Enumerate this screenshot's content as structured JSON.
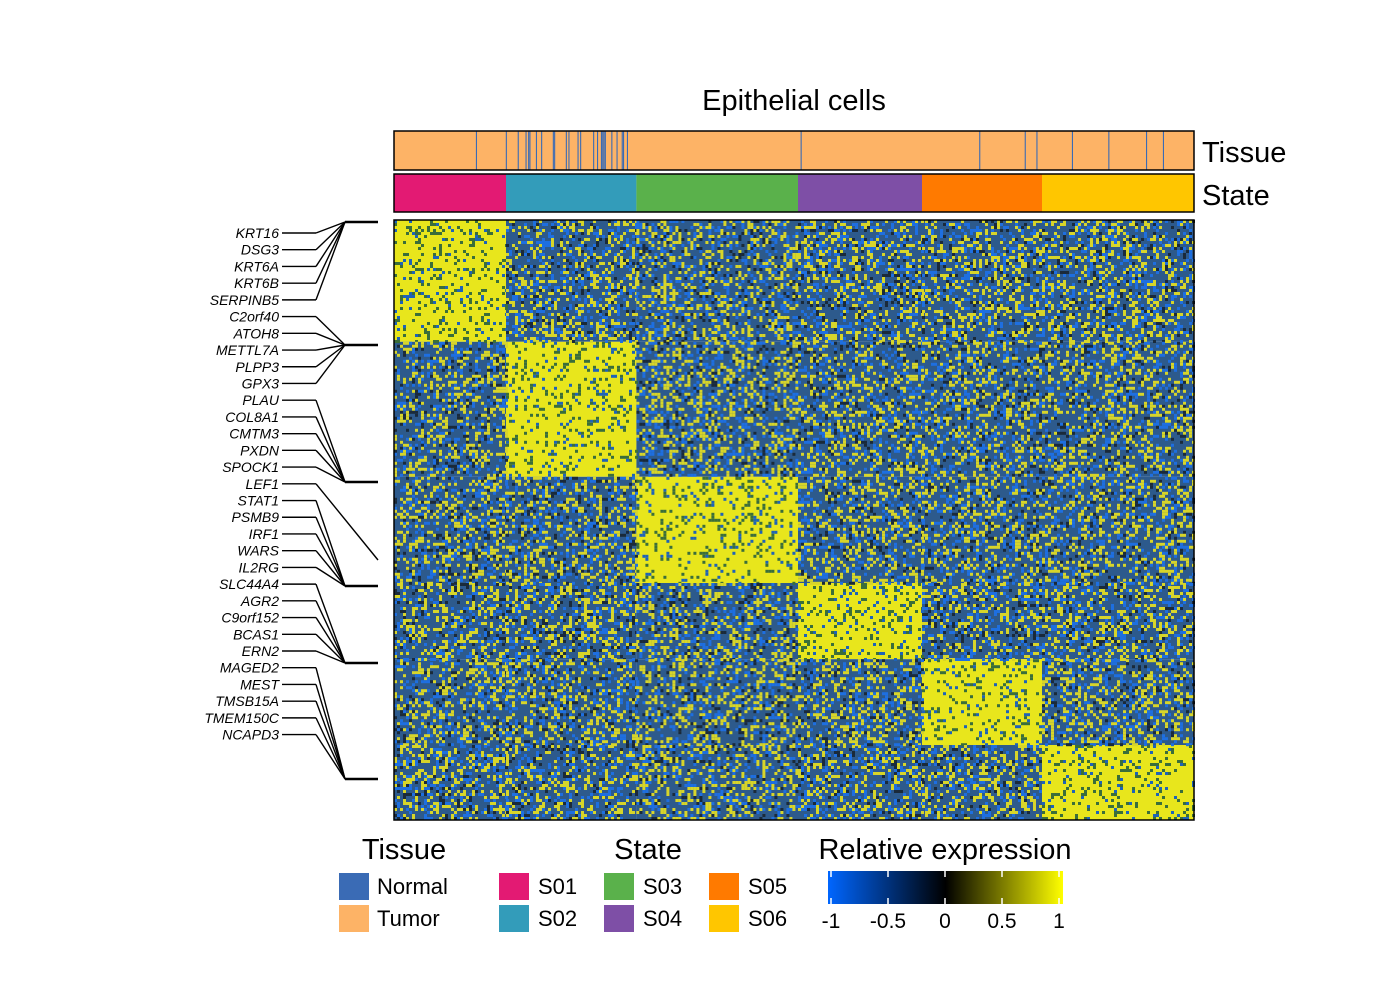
{
  "chart_data": {
    "type": "heatmap",
    "title": "Epithelial cells",
    "annotation_tracks": [
      "Tissue",
      "State"
    ],
    "states": [
      "S01",
      "S02",
      "S03",
      "S04",
      "S05",
      "S06"
    ],
    "state_fractions": [
      0.14,
      0.163,
      0.202,
      0.155,
      0.15,
      0.19
    ],
    "gene_block_fractions": [
      0.203,
      0.225,
      0.177,
      0.127,
      0.143,
      0.125
    ],
    "genes": [
      "KRT16",
      "DSG3",
      "KRT6A",
      "KRT6B",
      "SERPINB5",
      "C2orf40",
      "ATOH8",
      "METTL7A",
      "PLPP3",
      "GPX3",
      "PLAU",
      "COL8A1",
      "CMTM3",
      "PXDN",
      "SPOCK1",
      "LEF1",
      "STAT1",
      "PSMB9",
      "IRF1",
      "WARS",
      "IL2RG",
      "SLC44A4",
      "AGR2",
      "C9orf152",
      "BCAS1",
      "ERN2",
      "MAGED2",
      "MEST",
      "TMSB15A",
      "TMEM150C",
      "NCAPD3"
    ],
    "gene_groups": [
      5,
      5,
      6,
      5,
      5,
      5
    ],
    "legends": {
      "tissue": {
        "title": "Tissue",
        "items": [
          {
            "label": "Normal",
            "color": "#3A6BB5"
          },
          {
            "label": "Tumor",
            "color": "#FDB366"
          }
        ]
      },
      "state": {
        "title": "State",
        "items": [
          {
            "label": "S01",
            "color": "#E31A73"
          },
          {
            "label": "S02",
            "color": "#339CBA"
          },
          {
            "label": "S03",
            "color": "#5AB14B"
          },
          {
            "label": "S04",
            "color": "#7E4FA6"
          },
          {
            "label": "S05",
            "color": "#FF7A00"
          },
          {
            "label": "S06",
            "color": "#FFC600"
          }
        ]
      },
      "expression": {
        "title": "Relative expression",
        "ticks": [
          "-1",
          "-0.5",
          "0",
          "0.5",
          "1"
        ],
        "range": [
          -1,
          1
        ],
        "colors": [
          "#0066FF",
          "#000000",
          "#FFFF00"
        ]
      }
    }
  }
}
